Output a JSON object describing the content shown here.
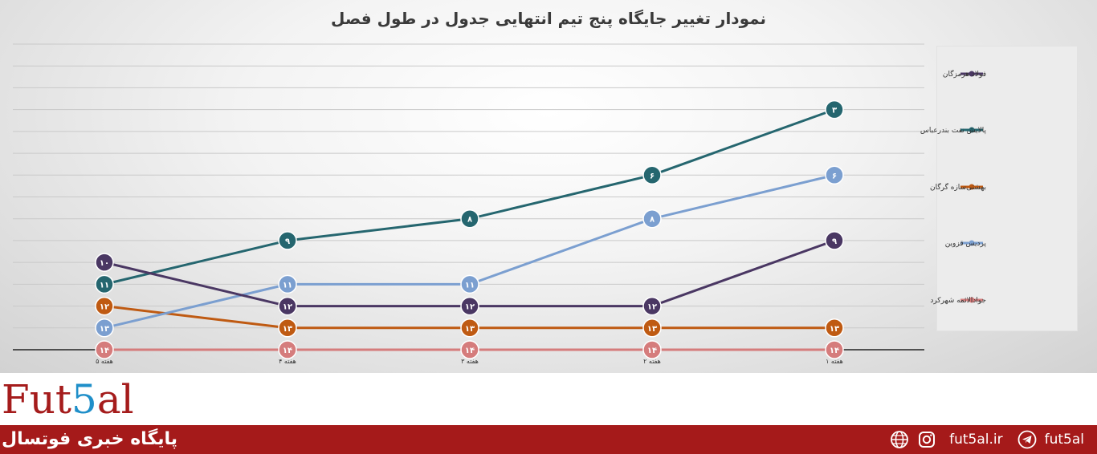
{
  "chart_data": {
    "type": "line",
    "title": "نمودار تغییر جایگاه پنج تیم انتهایی جدول در طول فصل",
    "categories": [
      "هفته ۵",
      "هفته ۴",
      "هفته ۳",
      "هفته ۲",
      "هفته ۱"
    ],
    "y_axis": {
      "reversed": true,
      "min": 1,
      "max": 14,
      "grid": true
    },
    "legend_position": "right",
    "series": [
      {
        "name": "فولاد هرمزگان",
        "color": "#4a3763",
        "values": [
          10,
          12,
          12,
          12,
          9
        ],
        "labels": [
          "۱۰",
          "۱۲",
          "۱۲",
          "۱۲",
          "۹"
        ]
      },
      {
        "name": "پالایش نفت بندرعباس",
        "color": "#25666f",
        "values": [
          11,
          9,
          8,
          6,
          3
        ],
        "labels": [
          "۱۱",
          "۹",
          "۸",
          "۶",
          "۳"
        ]
      },
      {
        "name": "بهشتی‌سازه گرگان",
        "color": "#bf5a12",
        "values": [
          12,
          13,
          13,
          13,
          13
        ],
        "labels": [
          "۱۲",
          "۱۳",
          "۱۳",
          "۱۳",
          "۱۳"
        ]
      },
      {
        "name": "پردیس قزوین",
        "color": "#7b9fd0",
        "values": [
          13,
          11,
          11,
          8,
          6
        ],
        "labels": [
          "۱۳",
          "۱۱",
          "۱۱",
          "۸",
          "۶"
        ]
      },
      {
        "name": "جوادالائمه شهرکرد",
        "color": "#d57c7c",
        "values": [
          14,
          14,
          14,
          14,
          14
        ],
        "labels": [
          "۱۴",
          "۱۴",
          "۱۴",
          "۱۴",
          "۱۴"
        ]
      }
    ]
  },
  "brand": {
    "logo_prefix": "Fut",
    "logo_digit": "5",
    "logo_suffix": "al"
  },
  "footer": {
    "tagline": "پایگاه خبری فوتسال",
    "website": "fut5al.ir",
    "telegram": "fut5al",
    "icons": [
      "globe-icon",
      "instagram-icon",
      "telegram-icon"
    ],
    "bar_color": "#a51a1a"
  }
}
